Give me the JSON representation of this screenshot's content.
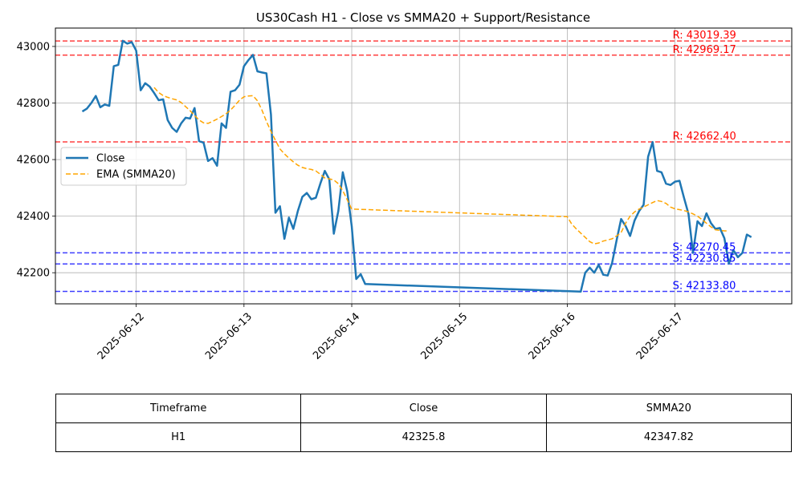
{
  "chart_data": {
    "type": "line",
    "title": "US30Cash H1 - Close vs SMMA20 + Support/Resistance",
    "xlabel": "",
    "ylabel": "",
    "xlim": [
      "2025-06-11 06:00",
      "2025-06-18 02:00"
    ],
    "ylim": [
      42090,
      43065
    ],
    "x_ticks": [
      "2025-06-12",
      "2025-06-13",
      "2025-06-14",
      "2025-06-15",
      "2025-06-16",
      "2025-06-17"
    ],
    "y_ticks": [
      42200,
      42400,
      42600,
      42800,
      43000
    ],
    "grid": true,
    "legend_position": "center-left",
    "series": [
      {
        "name": "Close",
        "color": "#1f77b4",
        "style": "solid",
        "points": [
          [
            "2025-06-11 12:00",
            42770
          ],
          [
            "2025-06-11 13:00",
            42780
          ],
          [
            "2025-06-11 14:00",
            42800
          ],
          [
            "2025-06-11 15:00",
            42825
          ],
          [
            "2025-06-11 16:00",
            42785
          ],
          [
            "2025-06-11 17:00",
            42795
          ],
          [
            "2025-06-11 18:00",
            42790
          ],
          [
            "2025-06-11 19:00",
            42930
          ],
          [
            "2025-06-11 20:00",
            42935
          ],
          [
            "2025-06-11 21:00",
            43020
          ],
          [
            "2025-06-11 22:00",
            43010
          ],
          [
            "2025-06-11 23:00",
            43015
          ],
          [
            "2025-06-12 00:00",
            42985
          ],
          [
            "2025-06-12 01:00",
            42845
          ],
          [
            "2025-06-12 02:00",
            42870
          ],
          [
            "2025-06-12 03:00",
            42858
          ],
          [
            "2025-06-12 04:00",
            42835
          ],
          [
            "2025-06-12 05:00",
            42810
          ],
          [
            "2025-06-12 06:00",
            42813
          ],
          [
            "2025-06-12 07:00",
            42740
          ],
          [
            "2025-06-12 08:00",
            42712
          ],
          [
            "2025-06-12 09:00",
            42698
          ],
          [
            "2025-06-12 10:00",
            42728
          ],
          [
            "2025-06-12 11:00",
            42748
          ],
          [
            "2025-06-12 12:00",
            42745
          ],
          [
            "2025-06-12 13:00",
            42782
          ],
          [
            "2025-06-12 14:00",
            42665
          ],
          [
            "2025-06-12 15:00",
            42660
          ],
          [
            "2025-06-12 16:00",
            42595
          ],
          [
            "2025-06-12 17:00",
            42605
          ],
          [
            "2025-06-12 18:00",
            42578
          ],
          [
            "2025-06-12 19:00",
            42728
          ],
          [
            "2025-06-12 20:00",
            42712
          ],
          [
            "2025-06-12 21:00",
            42840
          ],
          [
            "2025-06-12 22:00",
            42845
          ],
          [
            "2025-06-12 23:00",
            42865
          ],
          [
            "2025-06-13 00:00",
            42930
          ],
          [
            "2025-06-13 01:00",
            42952
          ],
          [
            "2025-06-13 02:00",
            42970
          ],
          [
            "2025-06-13 03:00",
            42912
          ],
          [
            "2025-06-13 04:00",
            42908
          ],
          [
            "2025-06-13 05:00",
            42905
          ],
          [
            "2025-06-13 06:00",
            42760
          ],
          [
            "2025-06-13 07:00",
            42412
          ],
          [
            "2025-06-13 08:00",
            42435
          ],
          [
            "2025-06-13 09:00",
            42320
          ],
          [
            "2025-06-13 10:00",
            42395
          ],
          [
            "2025-06-13 11:00",
            42355
          ],
          [
            "2025-06-13 12:00",
            42418
          ],
          [
            "2025-06-13 13:00",
            42468
          ],
          [
            "2025-06-13 14:00",
            42482
          ],
          [
            "2025-06-13 15:00",
            42460
          ],
          [
            "2025-06-13 16:00",
            42465
          ],
          [
            "2025-06-13 17:00",
            42515
          ],
          [
            "2025-06-13 18:00",
            42560
          ],
          [
            "2025-06-13 19:00",
            42530
          ],
          [
            "2025-06-13 20:00",
            42338
          ],
          [
            "2025-06-13 21:00",
            42418
          ],
          [
            "2025-06-13 22:00",
            42555
          ],
          [
            "2025-06-13 23:00",
            42488
          ],
          [
            "2025-06-14 00:00",
            42365
          ],
          [
            "2025-06-14 01:00",
            42178
          ],
          [
            "2025-06-14 02:00",
            42195
          ],
          [
            "2025-06-14 03:00",
            42160
          ],
          [
            "2025-06-16 03:00",
            42133
          ],
          [
            "2025-06-16 04:00",
            42200
          ],
          [
            "2025-06-16 05:00",
            42218
          ],
          [
            "2025-06-16 06:00",
            42200
          ],
          [
            "2025-06-16 07:00",
            42228
          ],
          [
            "2025-06-16 08:00",
            42193
          ],
          [
            "2025-06-16 09:00",
            42190
          ],
          [
            "2025-06-16 10:00",
            42235
          ],
          [
            "2025-06-16 11:00",
            42315
          ],
          [
            "2025-06-16 12:00",
            42390
          ],
          [
            "2025-06-16 13:00",
            42365
          ],
          [
            "2025-06-16 14:00",
            42330
          ],
          [
            "2025-06-16 15:00",
            42385
          ],
          [
            "2025-06-16 16:00",
            42418
          ],
          [
            "2025-06-16 17:00",
            42440
          ],
          [
            "2025-06-16 18:00",
            42610
          ],
          [
            "2025-06-16 19:00",
            42662
          ],
          [
            "2025-06-16 20:00",
            42560
          ],
          [
            "2025-06-16 21:00",
            42555
          ],
          [
            "2025-06-16 22:00",
            42515
          ],
          [
            "2025-06-16 23:00",
            42510
          ],
          [
            "2025-06-17 00:00",
            42522
          ],
          [
            "2025-06-17 01:00",
            42525
          ],
          [
            "2025-06-17 02:00",
            42465
          ],
          [
            "2025-06-17 03:00",
            42408
          ],
          [
            "2025-06-17 04:00",
            42270
          ],
          [
            "2025-06-17 05:00",
            42382
          ],
          [
            "2025-06-17 06:00",
            42365
          ],
          [
            "2025-06-17 07:00",
            42410
          ],
          [
            "2025-06-17 08:00",
            42375
          ],
          [
            "2025-06-17 09:00",
            42355
          ],
          [
            "2025-06-17 10:00",
            42358
          ],
          [
            "2025-06-17 11:00",
            42322
          ],
          [
            "2025-06-17 12:00",
            42232
          ],
          [
            "2025-06-17 13:00",
            42280
          ],
          [
            "2025-06-17 14:00",
            42255
          ],
          [
            "2025-06-17 15:00",
            42270
          ],
          [
            "2025-06-17 16:00",
            42335
          ],
          [
            "2025-06-17 17:00",
            42325.8
          ]
        ]
      },
      {
        "name": "EMA (SMMA20)",
        "color": "#ffa500",
        "style": "dashed",
        "points": [
          [
            "2025-06-12 04:00",
            42855
          ],
          [
            "2025-06-12 05:00",
            42837
          ],
          [
            "2025-06-12 06:00",
            42826
          ],
          [
            "2025-06-12 07:00",
            42820
          ],
          [
            "2025-06-12 08:00",
            42815
          ],
          [
            "2025-06-12 09:00",
            42811
          ],
          [
            "2025-06-12 10:00",
            42802
          ],
          [
            "2025-06-12 11:00",
            42787
          ],
          [
            "2025-06-12 12:00",
            42773
          ],
          [
            "2025-06-12 13:00",
            42756
          ],
          [
            "2025-06-12 14:00",
            42740
          ],
          [
            "2025-06-12 15:00",
            42730
          ],
          [
            "2025-06-12 16:00",
            42728
          ],
          [
            "2025-06-12 17:00",
            42735
          ],
          [
            "2025-06-12 18:00",
            42743
          ],
          [
            "2025-06-12 19:00",
            42752
          ],
          [
            "2025-06-12 20:00",
            42762
          ],
          [
            "2025-06-12 21:00",
            42775
          ],
          [
            "2025-06-12 22:00",
            42792
          ],
          [
            "2025-06-12 23:00",
            42810
          ],
          [
            "2025-06-13 00:00",
            42822
          ],
          [
            "2025-06-13 01:00",
            42825
          ],
          [
            "2025-06-13 02:00",
            42826
          ],
          [
            "2025-06-13 03:00",
            42808
          ],
          [
            "2025-06-13 04:00",
            42775
          ],
          [
            "2025-06-13 05:00",
            42735
          ],
          [
            "2025-06-13 06:00",
            42700
          ],
          [
            "2025-06-13 07:00",
            42668
          ],
          [
            "2025-06-13 08:00",
            42638
          ],
          [
            "2025-06-13 09:00",
            42620
          ],
          [
            "2025-06-13 10:00",
            42605
          ],
          [
            "2025-06-13 11:00",
            42592
          ],
          [
            "2025-06-13 12:00",
            42580
          ],
          [
            "2025-06-13 13:00",
            42572
          ],
          [
            "2025-06-13 14:00",
            42568
          ],
          [
            "2025-06-13 15:00",
            42565
          ],
          [
            "2025-06-13 16:00",
            42560
          ],
          [
            "2025-06-13 17:00",
            42548
          ],
          [
            "2025-06-13 18:00",
            42535
          ],
          [
            "2025-06-13 19:00",
            42532
          ],
          [
            "2025-06-13 20:00",
            42528
          ],
          [
            "2025-06-13 21:00",
            42515
          ],
          [
            "2025-06-13 22:00",
            42490
          ],
          [
            "2025-06-13 23:00",
            42458
          ],
          [
            "2025-06-14 00:00",
            42425
          ],
          [
            "2025-06-16 00:00",
            42398
          ],
          [
            "2025-06-16 01:00",
            42372
          ],
          [
            "2025-06-16 02:00",
            42355
          ],
          [
            "2025-06-16 03:00",
            42340
          ],
          [
            "2025-06-16 04:00",
            42325
          ],
          [
            "2025-06-16 05:00",
            42310
          ],
          [
            "2025-06-16 06:00",
            42302
          ],
          [
            "2025-06-16 07:00",
            42305
          ],
          [
            "2025-06-16 08:00",
            42312
          ],
          [
            "2025-06-16 09:00",
            42316
          ],
          [
            "2025-06-16 10:00",
            42320
          ],
          [
            "2025-06-16 11:00",
            42330
          ],
          [
            "2025-06-16 12:00",
            42342
          ],
          [
            "2025-06-16 13:00",
            42375
          ],
          [
            "2025-06-16 14:00",
            42400
          ],
          [
            "2025-06-16 15:00",
            42415
          ],
          [
            "2025-06-16 16:00",
            42425
          ],
          [
            "2025-06-16 17:00",
            42432
          ],
          [
            "2025-06-16 18:00",
            42440
          ],
          [
            "2025-06-16 19:00",
            42448
          ],
          [
            "2025-06-16 20:00",
            42455
          ],
          [
            "2025-06-16 21:00",
            42452
          ],
          [
            "2025-06-16 22:00",
            42445
          ],
          [
            "2025-06-16 23:00",
            42432
          ],
          [
            "2025-06-17 00:00",
            42426
          ],
          [
            "2025-06-17 01:00",
            42423
          ],
          [
            "2025-06-17 02:00",
            42420
          ],
          [
            "2025-06-17 03:00",
            42415
          ],
          [
            "2025-06-17 04:00",
            42408
          ],
          [
            "2025-06-17 05:00",
            42400
          ],
          [
            "2025-06-17 06:00",
            42388
          ],
          [
            "2025-06-17 07:00",
            42375
          ],
          [
            "2025-06-17 08:00",
            42362
          ],
          [
            "2025-06-17 09:00",
            42352
          ],
          [
            "2025-06-17 10:00",
            42350
          ],
          [
            "2025-06-17 11:00",
            42348
          ],
          [
            "2025-06-17 12:00",
            42347.82
          ]
        ]
      }
    ],
    "levels": [
      {
        "kind": "resistance",
        "value": 43019.39,
        "label": "R: 43019.39",
        "color": "#ff0000"
      },
      {
        "kind": "resistance",
        "value": 42969.17,
        "label": "R: 42969.17",
        "color": "#ff0000"
      },
      {
        "kind": "resistance",
        "value": 42662.4,
        "label": "R: 42662.40",
        "color": "#ff0000"
      },
      {
        "kind": "support",
        "value": 42270.45,
        "label": "S: 42270.45",
        "color": "#0000ff"
      },
      {
        "kind": "support",
        "value": 42230.85,
        "label": "S: 42230.85",
        "color": "#0000ff"
      },
      {
        "kind": "support",
        "value": 42133.8,
        "label": "S: 42133.80",
        "color": "#0000ff"
      }
    ]
  },
  "table": {
    "headers": [
      "Timeframe",
      "Close",
      "SMMA20"
    ],
    "rows": [
      [
        "H1",
        "42325.8",
        "42347.82"
      ]
    ]
  }
}
